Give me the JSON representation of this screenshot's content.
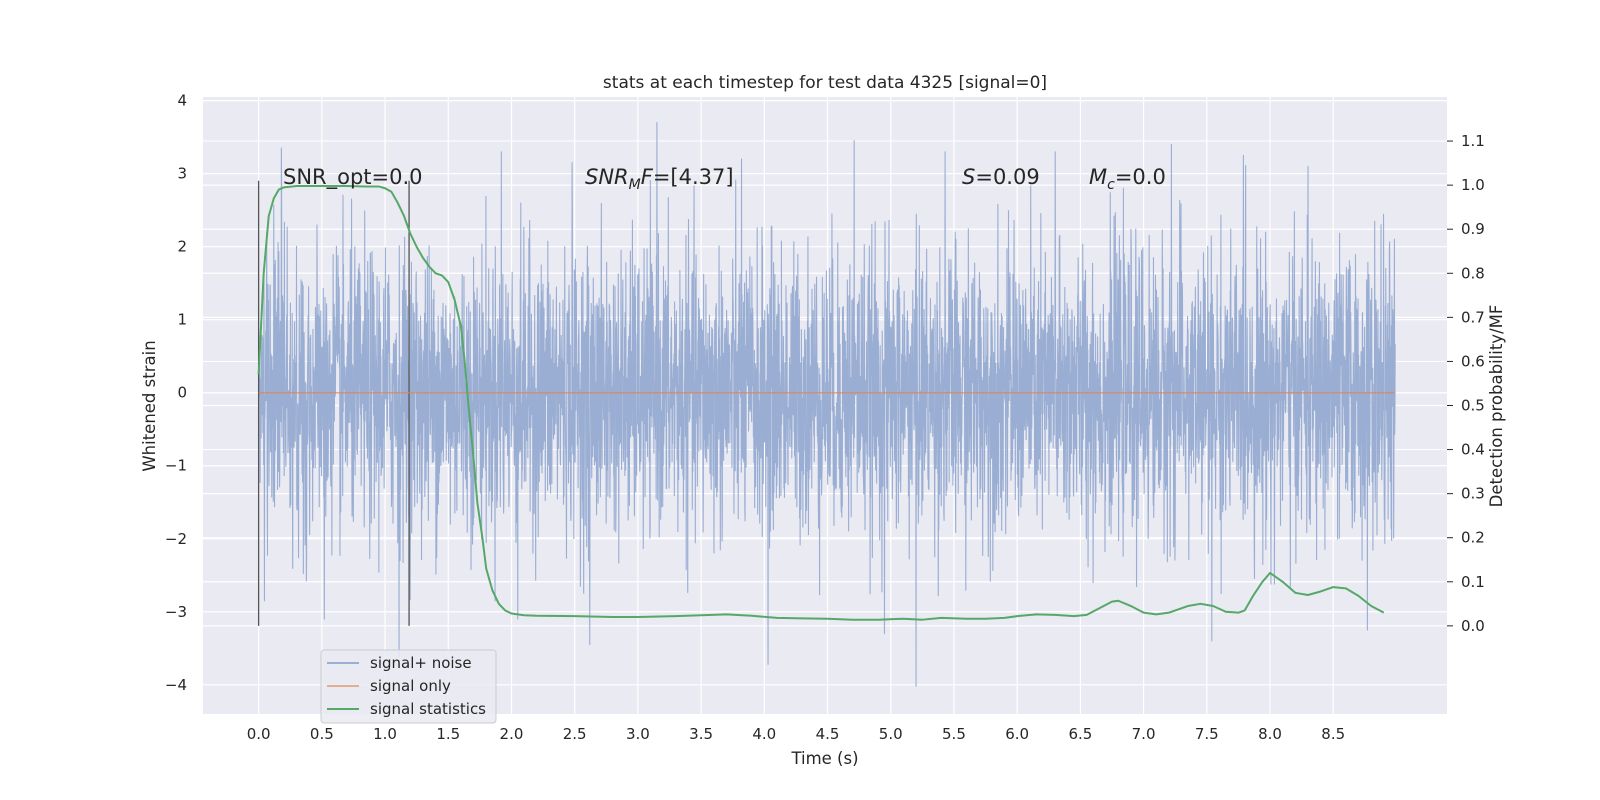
{
  "chart_data": {
    "type": "line",
    "title": "stats at each timestep for test data 4325 [signal=0]",
    "xlabel": "Time (s)",
    "ylabel": "Whitened strain",
    "ylabel_right": "Detection probability/MF",
    "xlim": [
      -0.44,
      9.4
    ],
    "ylim": [
      -4.4,
      4.05
    ],
    "ylim_right": [
      -0.2,
      1.2
    ],
    "x_ticks": [
      "0.0",
      "0.5",
      "1.0",
      "1.5",
      "2.0",
      "2.5",
      "3.0",
      "3.5",
      "4.0",
      "4.5",
      "5.0",
      "5.5",
      "6.0",
      "6.5",
      "7.0",
      "7.5",
      "8.0",
      "8.5"
    ],
    "y_ticks_left": [
      "−4",
      "−3",
      "−2",
      "−1",
      "0",
      "1",
      "2",
      "3",
      "4"
    ],
    "y_ticks_right": [
      "0.0",
      "0.1",
      "0.2",
      "0.3",
      "0.4",
      "0.5",
      "0.6",
      "0.7",
      "0.8",
      "0.9",
      "1.0",
      "1.1"
    ],
    "grid": true,
    "annotations": {
      "snr_opt": "SNR_opt=0.0",
      "snr_mf_italic": "SNR",
      "snr_mf_sub": "M",
      "snr_mf_italic2": "F",
      "snr_mf_value": "=[4.37]",
      "s_italic": "S",
      "s_value": "=0.09",
      "mc_italic": "M",
      "mc_sub": "c",
      "mc_value": "=0.0"
    },
    "vertical_markers": [
      0.0,
      1.19
    ],
    "series": [
      {
        "name": "signal+ noise",
        "color": "#9aaed3",
        "axis": "left",
        "x_range": [
          0.0,
          8.99
        ],
        "envelope_note": "dense whitened noise, roughly within ±2.5, occasional spikes to about ±4",
        "peaks": [
          {
            "x": 0.18,
            "y": 3.35
          },
          {
            "x": 1.11,
            "y": -3.62
          },
          {
            "x": 0.52,
            "y": -3.1
          },
          {
            "x": 1.92,
            "y": 3.3
          },
          {
            "x": 2.62,
            "y": -3.45
          },
          {
            "x": 3.15,
            "y": 3.7
          },
          {
            "x": 4.03,
            "y": -3.72
          },
          {
            "x": 4.71,
            "y": 3.45
          },
          {
            "x": 5.2,
            "y": -4.02
          },
          {
            "x": 5.43,
            "y": 3.3
          },
          {
            "x": 7.22,
            "y": 3.4
          },
          {
            "x": 7.54,
            "y": -3.4
          },
          {
            "x": 8.77,
            "y": -3.25
          },
          {
            "x": 6.3,
            "y": 3.3
          },
          {
            "x": 3.82,
            "y": 3.2
          },
          {
            "x": 2.48,
            "y": 3.15
          },
          {
            "x": 7.79,
            "y": 3.25
          },
          {
            "x": 8.3,
            "y": 3.1
          },
          {
            "x": 4.95,
            "y": -3.3
          },
          {
            "x": 2.05,
            "y": -3.1
          }
        ]
      },
      {
        "name": "signal only",
        "color": "#dd8452",
        "axis": "left",
        "x": [
          0.0,
          8.99
        ],
        "y": [
          0.0,
          0.0
        ]
      },
      {
        "name": "signal statistics",
        "color": "#55a868",
        "axis": "right",
        "x": [
          0.0,
          0.04,
          0.08,
          0.12,
          0.16,
          0.2,
          0.3,
          0.5,
          0.7,
          0.85,
          0.95,
          1.0,
          1.05,
          1.1,
          1.15,
          1.2,
          1.25,
          1.3,
          1.35,
          1.4,
          1.45,
          1.5,
          1.55,
          1.6,
          1.63,
          1.66,
          1.7,
          1.73,
          1.77,
          1.8,
          1.85,
          1.9,
          1.95,
          2.0,
          2.1,
          2.2,
          2.5,
          2.8,
          3.0,
          3.3,
          3.5,
          3.7,
          3.9,
          4.1,
          4.3,
          4.5,
          4.7,
          4.9,
          5.1,
          5.25,
          5.4,
          5.6,
          5.75,
          5.9,
          6.0,
          6.15,
          6.3,
          6.45,
          6.55,
          6.65,
          6.75,
          6.8,
          6.9,
          7.0,
          7.1,
          7.2,
          7.35,
          7.45,
          7.55,
          7.65,
          7.75,
          7.8,
          7.87,
          7.94,
          8.0,
          8.1,
          8.2,
          8.3,
          8.4,
          8.5,
          8.6,
          8.7,
          8.8,
          8.9
        ],
        "y": [
          0.57,
          0.8,
          0.93,
          0.97,
          0.99,
          0.995,
          0.998,
          0.998,
          0.998,
          0.997,
          0.997,
          0.993,
          0.985,
          0.96,
          0.93,
          0.89,
          0.86,
          0.835,
          0.815,
          0.8,
          0.795,
          0.78,
          0.74,
          0.68,
          0.6,
          0.5,
          0.38,
          0.28,
          0.2,
          0.13,
          0.08,
          0.05,
          0.035,
          0.028,
          0.024,
          0.023,
          0.022,
          0.02,
          0.02,
          0.022,
          0.024,
          0.026,
          0.023,
          0.018,
          0.017,
          0.016,
          0.014,
          0.014,
          0.016,
          0.014,
          0.018,
          0.016,
          0.016,
          0.018,
          0.022,
          0.026,
          0.025,
          0.022,
          0.025,
          0.04,
          0.055,
          0.057,
          0.045,
          0.03,
          0.026,
          0.03,
          0.045,
          0.05,
          0.045,
          0.032,
          0.03,
          0.035,
          0.07,
          0.1,
          0.12,
          0.1,
          0.075,
          0.07,
          0.078,
          0.088,
          0.085,
          0.068,
          0.045,
          0.03
        ]
      }
    ],
    "legend": {
      "location": "lower-left",
      "entries": [
        "signal+ noise",
        "signal only",
        "signal statistics"
      ]
    }
  }
}
